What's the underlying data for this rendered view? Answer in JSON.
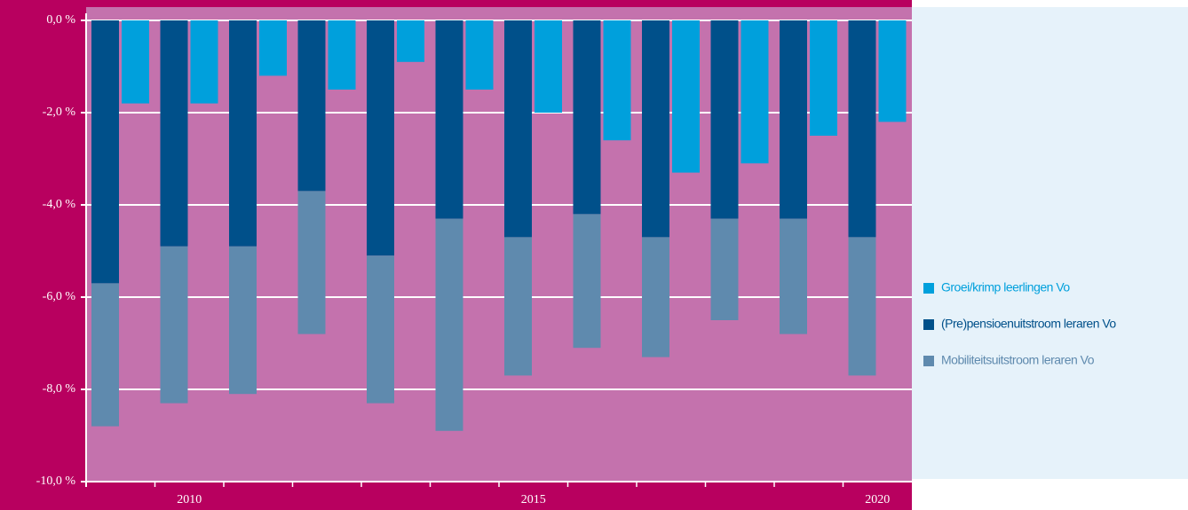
{
  "chart_data": {
    "type": "bar",
    "stacked": true,
    "categories": [
      null,
      "2010",
      null,
      null,
      null,
      null,
      "2015",
      null,
      null,
      null,
      null,
      "2020"
    ],
    "series": [
      {
        "name": "Groei/krimp leerlingen Vo",
        "color": "#00a0dc",
        "stack": "b",
        "values": [
          -1.8,
          -1.8,
          -1.2,
          -1.5,
          -0.9,
          -1.5,
          -2.0,
          -2.6,
          -3.3,
          -3.1,
          -2.5,
          -2.2
        ]
      },
      {
        "name": "(Pre)pensioenuitstroom leraren Vo",
        "color": "#00508a",
        "stack": "a",
        "values": [
          -5.7,
          -4.9,
          -4.9,
          -3.7,
          -5.1,
          -4.3,
          -4.7,
          -4.2,
          -4.7,
          -4.3,
          -4.3,
          -4.7
        ]
      },
      {
        "name": "Mobiliteitsuitstroom leraren Vo",
        "color": "#5f8aae",
        "stack": "a",
        "values": [
          -3.1,
          -3.4,
          -3.2,
          -3.1,
          -3.2,
          -4.6,
          -3.0,
          -2.9,
          -2.6,
          -2.2,
          -2.5,
          -3.0
        ]
      }
    ],
    "ylim": [
      -10,
      0
    ],
    "yticks": [
      {
        "value": 0,
        "label": "0,0 %"
      },
      {
        "value": -2,
        "label": "-2,0 %"
      },
      {
        "value": -4,
        "label": "-4,0 %"
      },
      {
        "value": -6,
        "label": "-6,0 %"
      },
      {
        "value": -8,
        "label": "-8,0 %"
      },
      {
        "value": -10,
        "label": "-10,0 %"
      }
    ],
    "grid": true,
    "legend": "right"
  }
}
